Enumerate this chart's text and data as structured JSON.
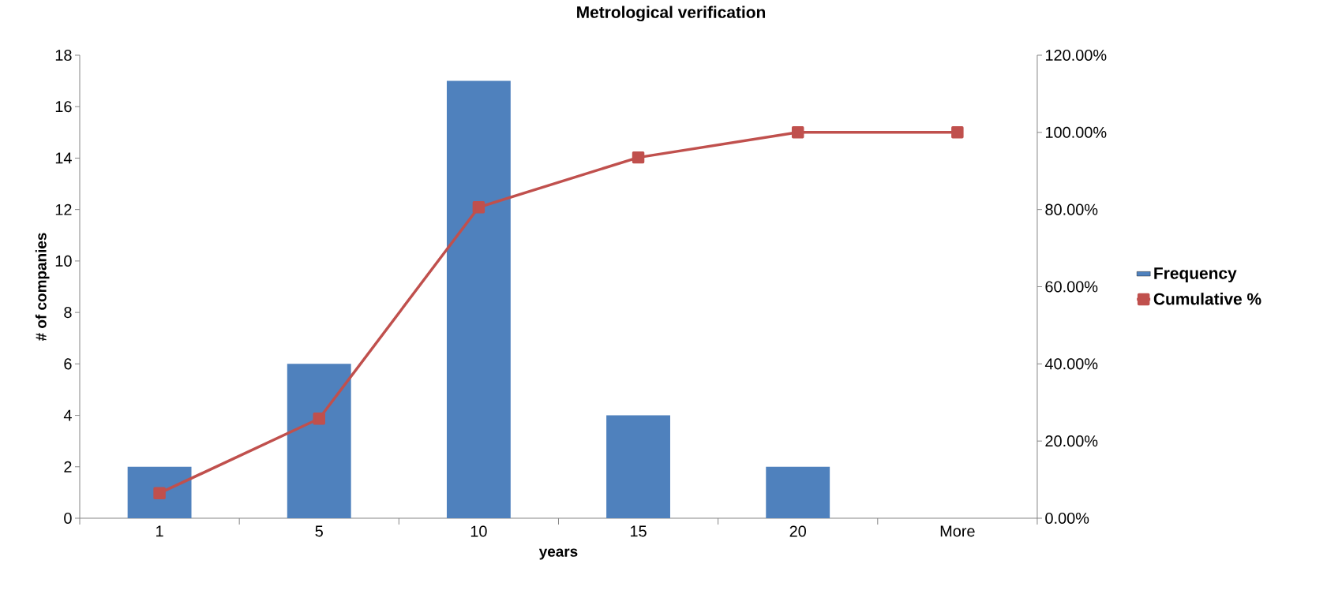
{
  "chart_data": {
    "type": "bar",
    "title": "Metrological verification",
    "xlabel": "years",
    "ylabel": "# of companies",
    "categories": [
      "1",
      "5",
      "10",
      "15",
      "20",
      "More"
    ],
    "series": [
      {
        "name": "Frequency",
        "color": "#4f81bd",
        "values": [
          2,
          6,
          17,
          4,
          2,
          0
        ]
      },
      {
        "name": "Cumulative %",
        "type": "line",
        "axis": "y2",
        "marker": "square",
        "color": "#c0504d",
        "values": [
          6.5,
          25.8,
          80.6,
          93.5,
          100,
          100
        ]
      }
    ],
    "ylim": [
      0,
      18
    ],
    "yticks": [
      0,
      2,
      4,
      6,
      8,
      10,
      12,
      14,
      16,
      18
    ],
    "y2lim": [
      0,
      120
    ],
    "y2ticks": [
      {
        "value": 0,
        "label": "0.00%"
      },
      {
        "value": 20,
        "label": "20.00%"
      },
      {
        "value": 40,
        "label": "40.00%"
      },
      {
        "value": 60,
        "label": "60.00%"
      },
      {
        "value": 80,
        "label": "80.00%"
      },
      {
        "value": 100,
        "label": "100.00%"
      },
      {
        "value": 120,
        "label": "120.00%"
      }
    ],
    "legend": "right"
  }
}
